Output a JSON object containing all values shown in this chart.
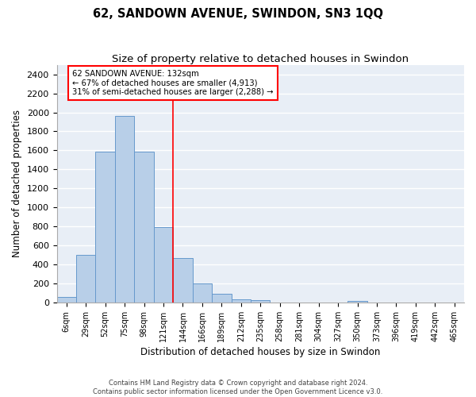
{
  "title": "62, SANDOWN AVENUE, SWINDON, SN3 1QQ",
  "subtitle": "Size of property relative to detached houses in Swindon",
  "xlabel": "Distribution of detached houses by size in Swindon",
  "ylabel": "Number of detached properties",
  "footer_line1": "Contains HM Land Registry data © Crown copyright and database right 2024.",
  "footer_line2": "Contains public sector information licensed under the Open Government Licence v3.0.",
  "categories": [
    "6sqm",
    "29sqm",
    "52sqm",
    "75sqm",
    "98sqm",
    "121sqm",
    "144sqm",
    "166sqm",
    "189sqm",
    "212sqm",
    "235sqm",
    "258sqm",
    "281sqm",
    "304sqm",
    "327sqm",
    "350sqm",
    "373sqm",
    "396sqm",
    "419sqm",
    "442sqm",
    "465sqm"
  ],
  "values": [
    55,
    500,
    1590,
    1960,
    1590,
    790,
    470,
    200,
    90,
    35,
    25,
    0,
    0,
    0,
    0,
    20,
    0,
    0,
    0,
    0,
    0
  ],
  "bar_color": "#b8cfe8",
  "bar_edge_color": "#6699cc",
  "bg_color": "#e8eef6",
  "grid_color": "#ffffff",
  "annotation_text_line1": "62 SANDOWN AVENUE: 132sqm",
  "annotation_text_line2": "← 67% of detached houses are smaller (4,913)",
  "annotation_text_line3": "31% of semi-detached houses are larger (2,288) →",
  "ylim": [
    0,
    2500
  ],
  "yticks": [
    0,
    200,
    400,
    600,
    800,
    1000,
    1200,
    1400,
    1600,
    1800,
    2000,
    2200,
    2400
  ],
  "vline_pos": 5.478
}
